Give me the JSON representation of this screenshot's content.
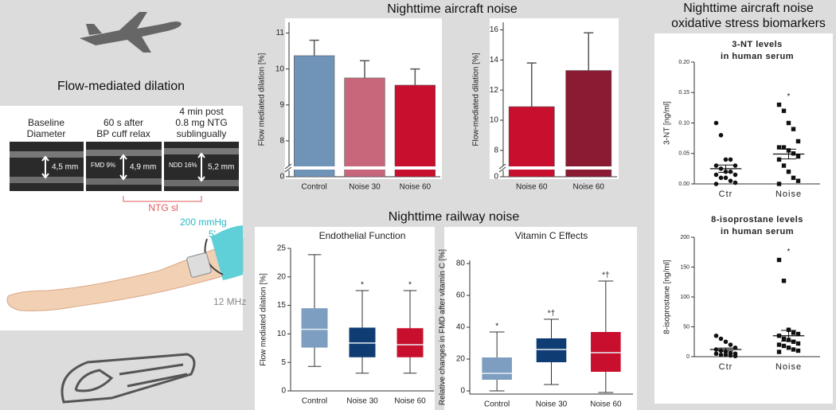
{
  "headings": {
    "aircraft": "Nighttime aircraft noise",
    "railway": "Nighttime railway noise",
    "biomarkers": [
      "Nighttime aircraft noise",
      "oxidative stress biomarkers"
    ]
  },
  "left_panel": {
    "title": "Flow-mediated dilation",
    "captions": [
      [
        "Baseline",
        "Diameter"
      ],
      [
        "60 s after",
        "BP cuff relax"
      ],
      [
        "4 min post",
        "0.8 mg NTG",
        "sublingually"
      ]
    ],
    "measurements": [
      "4,5 mm",
      "4,9 mm",
      "5,2 mm"
    ],
    "image_labels": [
      "FMD 9%",
      "NDD 16%"
    ],
    "bracket_label": "NTG sl",
    "cuff_pressure": "200 mmHg",
    "cuff_time": "5'",
    "probe": "12 MHz"
  },
  "chart_data": [
    {
      "type": "bar",
      "ylabel": "Flow mediated dilation [%]",
      "categories": [
        "Control",
        "Noise 30",
        "Noise 60"
      ],
      "values": [
        10.37,
        9.75,
        9.55
      ],
      "errors": [
        0.43,
        0.48,
        0.45
      ],
      "colors": [
        "#7094b8",
        "#c8677b",
        "#c8102e"
      ],
      "ylim": [
        0,
        11.3
      ],
      "ybreak": [
        0,
        7.4
      ],
      "yticks": [
        0,
        8,
        9,
        10,
        11
      ]
    },
    {
      "type": "bar",
      "ylabel": "Flow-mediated dilation [%]",
      "categories": [
        "Noise 60",
        "Noise 60"
      ],
      "values": [
        10.9,
        13.3
      ],
      "errors": [
        2.9,
        2.5
      ],
      "colors": [
        "#c8102e",
        "#8b1a33"
      ],
      "ylim": [
        0,
        16.5
      ],
      "ybreak": [
        0,
        7.2
      ],
      "yticks": [
        0,
        8,
        10,
        12,
        14,
        16
      ]
    },
    {
      "type": "box",
      "title": "Endothelial Function",
      "ylabel": "Flow mediated dilation [%]",
      "categories": [
        "Control",
        "Noise 30",
        "Noise 60"
      ],
      "boxes": [
        {
          "min": 4.3,
          "q1": 7.6,
          "median": 10.8,
          "q3": 14.5,
          "max": 23.9
        },
        {
          "min": 3.1,
          "q1": 5.9,
          "median": 8.4,
          "q3": 11.1,
          "max": 17.6,
          "label": "*"
        },
        {
          "min": 3.1,
          "q1": 5.9,
          "median": 8.1,
          "q3": 11.0,
          "max": 17.6,
          "label": "*"
        }
      ],
      "colors": [
        "#7d9ec0",
        "#0f3d73",
        "#c8102e"
      ],
      "ylim": [
        0,
        25
      ],
      "yticks": [
        0,
        5,
        10,
        15,
        20,
        25
      ]
    },
    {
      "type": "box",
      "title": "Vitamin C Effects",
      "ylabel": "Relative changes in FMD after vitamin C [%]",
      "categories": [
        "Control",
        "Noise 30",
        "Noise 60"
      ],
      "boxes": [
        {
          "min": 0,
          "q1": 7,
          "median": 11,
          "q3": 21,
          "max": 37,
          "label": "*"
        },
        {
          "min": 4,
          "q1": 18,
          "median": 26,
          "q3": 33,
          "max": 45,
          "label": "*†"
        },
        {
          "min": -1,
          "q1": 12,
          "median": 24,
          "q3": 37,
          "max": 69,
          "label": "*†"
        }
      ],
      "colors": [
        "#7d9ec0",
        "#0f3d73",
        "#c8102e"
      ],
      "ylim": [
        -2,
        82
      ],
      "yticks": [
        0,
        20,
        40,
        60,
        80
      ]
    },
    {
      "type": "dot",
      "title": [
        "3-NT levels",
        "in human serum"
      ],
      "ylabel": "3-NT [ng/ml]",
      "groups": [
        {
          "name": "Ctr",
          "values": [
            0.1,
            0.08,
            0.04,
            0.04,
            0.03,
            0.03,
            0.025,
            0.02,
            0.02,
            0.015,
            0.015,
            0.01,
            0.01,
            0.005,
            0.002,
            0.0
          ],
          "mean": 0.025,
          "sem": 0.006
        },
        {
          "name": "Noise",
          "values": [
            0.13,
            0.12,
            0.1,
            0.09,
            0.07,
            0.06,
            0.06,
            0.055,
            0.05,
            0.045,
            0.04,
            0.03,
            0.02,
            0.01,
            0.005,
            0.0
          ],
          "mean": 0.049,
          "sem": 0.008,
          "label": "*"
        }
      ],
      "ylim": [
        0,
        0.2
      ],
      "yticks": [
        {
          "value": 0,
          "label": "0.00"
        },
        {
          "value": 0.05,
          "label": "0.05"
        },
        {
          "value": 0.1,
          "label": "0.10"
        },
        {
          "value": 0.15,
          "label": "0.15"
        },
        {
          "value": 0.2,
          "label": "0.20"
        }
      ]
    },
    {
      "type": "dot",
      "title": [
        "8-isoprostane levels",
        "in human serum"
      ],
      "ylabel": "8-isoprostane [ng/ml]",
      "groups": [
        {
          "name": "Ctr",
          "values": [
            35,
            30,
            25,
            20,
            15,
            12,
            10,
            8,
            6,
            5,
            5,
            3,
            3,
            2,
            1
          ],
          "mean": 12,
          "sem": 2.5
        },
        {
          "name": "Noise",
          "values": [
            162,
            127,
            45,
            40,
            38,
            35,
            30,
            28,
            25,
            22,
            20,
            18,
            15,
            12,
            10,
            8
          ],
          "mean": 35,
          "sem": 9,
          "label": "*"
        }
      ],
      "ylim": [
        0,
        200
      ],
      "yticks": [
        0,
        50,
        100,
        150,
        200
      ]
    }
  ]
}
